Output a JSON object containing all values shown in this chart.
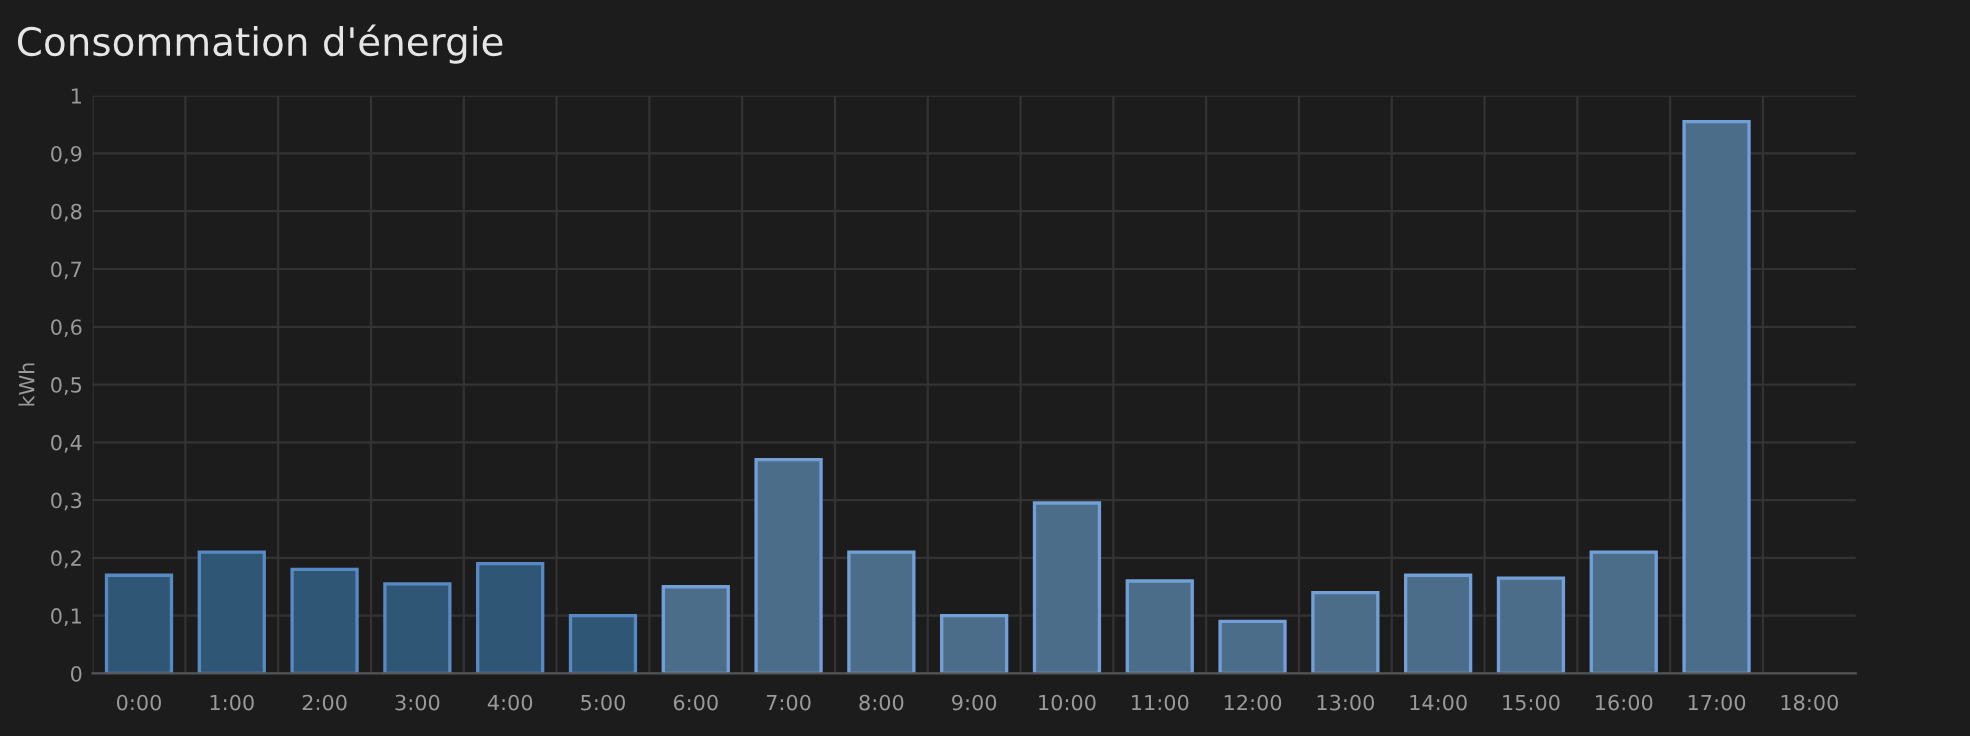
{
  "chart_data": {
    "type": "bar",
    "title": "Consommation d'énergie",
    "ylabel": "kWh",
    "categories": [
      "0:00",
      "1:00",
      "2:00",
      "3:00",
      "4:00",
      "5:00",
      "6:00",
      "7:00",
      "8:00",
      "9:00",
      "10:00",
      "11:00",
      "12:00",
      "13:00",
      "14:00",
      "15:00",
      "16:00",
      "17:00",
      "18:00"
    ],
    "values": [
      0.17,
      0.21,
      0.18,
      0.155,
      0.19,
      0.1,
      0.15,
      0.37,
      0.21,
      0.1,
      0.295,
      0.16,
      0.09,
      0.14,
      0.17,
      0.165,
      0.21,
      0.955,
      null
    ],
    "colors": [
      "#2f5675",
      "#2f5675",
      "#2f5675",
      "#2f5675",
      "#2f5675",
      "#2f5675",
      "#4c6d8a",
      "#4c6d8a",
      "#4c6d8a",
      "#4c6d8a",
      "#4c6d8a",
      "#4c6d8a",
      "#4c6d8a",
      "#4c6d8a",
      "#4c6d8a",
      "#4c6d8a",
      "#4c6d8a",
      "#4c6d8a",
      "#4c6d8a"
    ],
    "ylim": [
      0,
      1
    ],
    "yticks": [
      0,
      {
        "value": 0.1,
        "label": "0,1"
      },
      {
        "value": 0.2,
        "label": "0,2"
      },
      {
        "value": 0.3,
        "label": "0,3"
      },
      {
        "value": 0.4,
        "label": "0,4"
      },
      {
        "value": 0.5,
        "label": "0,5"
      },
      {
        "value": 0.6,
        "label": "0,6"
      },
      {
        "value": 0.7,
        "label": "0,7"
      },
      {
        "value": 0.8,
        "label": "0,8"
      },
      {
        "value": 0.9,
        "label": "0,9"
      },
      1
    ],
    "grid": true,
    "legend": false
  }
}
